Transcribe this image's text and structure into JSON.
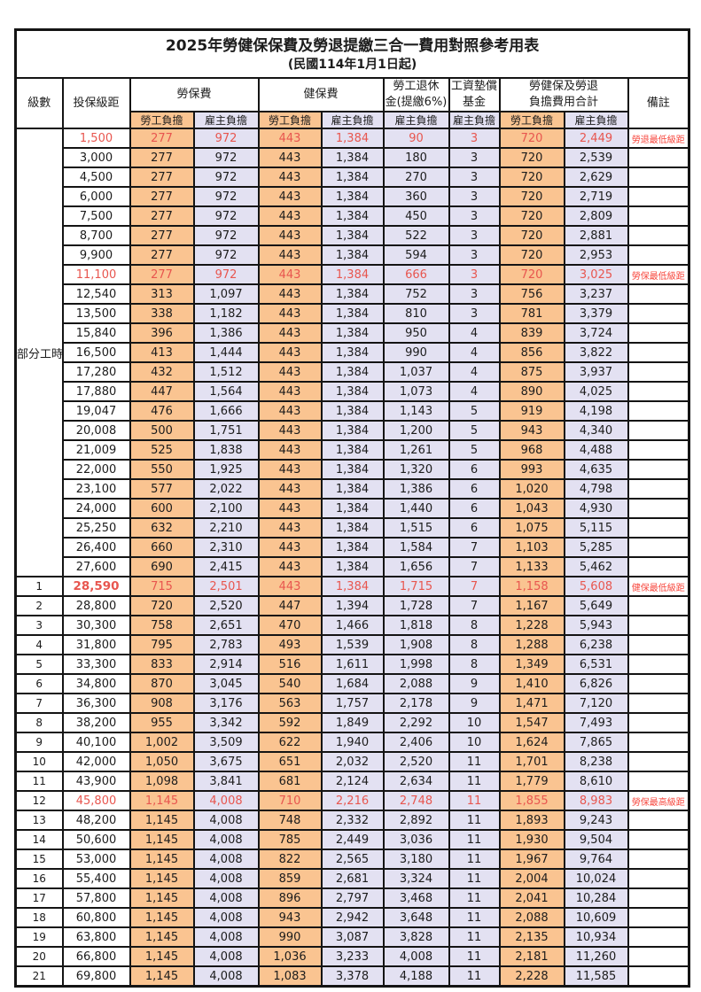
{
  "title": "2025年勞健保保費及勞退提繳三合一費用對照參考用表",
  "subtitle": "(民國114年1月1日起)",
  "header": {
    "level": "級數",
    "salary": "投保級距",
    "labor": "勞保費",
    "health": "健保費",
    "pension_line1": "勞工退休",
    "pension_line2": "金(提繳6%)",
    "fund_line1": "工資墊償",
    "fund_line2": "基金",
    "total_line1": "勞健保及勞退",
    "total_line2": "負擔費用合計",
    "remark": "備註",
    "employee": "勞工負擔",
    "employer": "雇主負擔"
  },
  "colors": {
    "employee_bg": "#fac491",
    "employer_bg": "#e3e1f2",
    "number_red": "#e8564f",
    "remark_red": "#f7463c",
    "border": "#141414"
  },
  "table": {
    "group_label": "部分工時",
    "group_rowspan": 23,
    "rows": [
      {
        "level": "",
        "cells": [
          "1,500",
          "277",
          "972",
          "443",
          "1,384",
          "90",
          "3",
          "720",
          "2,449"
        ],
        "note": "勞退最低級距",
        "red": true
      },
      {
        "level": "",
        "cells": [
          "3,000",
          "277",
          "972",
          "443",
          "1,384",
          "180",
          "3",
          "720",
          "2,539"
        ],
        "note": "",
        "red": false
      },
      {
        "level": "",
        "cells": [
          "4,500",
          "277",
          "972",
          "443",
          "1,384",
          "270",
          "3",
          "720",
          "2,629"
        ],
        "note": "",
        "red": false
      },
      {
        "level": "",
        "cells": [
          "6,000",
          "277",
          "972",
          "443",
          "1,384",
          "360",
          "3",
          "720",
          "2,719"
        ],
        "note": "",
        "red": false
      },
      {
        "level": "",
        "cells": [
          "7,500",
          "277",
          "972",
          "443",
          "1,384",
          "450",
          "3",
          "720",
          "2,809"
        ],
        "note": "",
        "red": false
      },
      {
        "level": "",
        "cells": [
          "8,700",
          "277",
          "972",
          "443",
          "1,384",
          "522",
          "3",
          "720",
          "2,881"
        ],
        "note": "",
        "red": false
      },
      {
        "level": "",
        "cells": [
          "9,900",
          "277",
          "972",
          "443",
          "1,384",
          "594",
          "3",
          "720",
          "2,953"
        ],
        "note": "",
        "red": false
      },
      {
        "level": "",
        "cells": [
          "11,100",
          "277",
          "972",
          "443",
          "1,384",
          "666",
          "3",
          "720",
          "3,025"
        ],
        "note": "勞保最低級距",
        "red": true
      },
      {
        "level": "",
        "cells": [
          "12,540",
          "313",
          "1,097",
          "443",
          "1,384",
          "752",
          "3",
          "756",
          "3,237"
        ],
        "note": "",
        "red": false
      },
      {
        "level": "",
        "cells": [
          "13,500",
          "338",
          "1,182",
          "443",
          "1,384",
          "810",
          "3",
          "781",
          "3,379"
        ],
        "note": "",
        "red": false
      },
      {
        "level": "",
        "cells": [
          "15,840",
          "396",
          "1,386",
          "443",
          "1,384",
          "950",
          "4",
          "839",
          "3,724"
        ],
        "note": "",
        "red": false
      },
      {
        "level": "",
        "cells": [
          "16,500",
          "413",
          "1,444",
          "443",
          "1,384",
          "990",
          "4",
          "856",
          "3,822"
        ],
        "note": "",
        "red": false
      },
      {
        "level": "",
        "cells": [
          "17,280",
          "432",
          "1,512",
          "443",
          "1,384",
          "1,037",
          "4",
          "875",
          "3,937"
        ],
        "note": "",
        "red": false
      },
      {
        "level": "",
        "cells": [
          "17,880",
          "447",
          "1,564",
          "443",
          "1,384",
          "1,073",
          "4",
          "890",
          "4,025"
        ],
        "note": "",
        "red": false
      },
      {
        "level": "",
        "cells": [
          "19,047",
          "476",
          "1,666",
          "443",
          "1,384",
          "1,143",
          "5",
          "919",
          "4,198"
        ],
        "note": "",
        "red": false
      },
      {
        "level": "",
        "cells": [
          "20,008",
          "500",
          "1,751",
          "443",
          "1,384",
          "1,200",
          "5",
          "943",
          "4,340"
        ],
        "note": "",
        "red": false
      },
      {
        "level": "",
        "cells": [
          "21,009",
          "525",
          "1,838",
          "443",
          "1,384",
          "1,261",
          "5",
          "968",
          "4,488"
        ],
        "note": "",
        "red": false
      },
      {
        "level": "",
        "cells": [
          "22,000",
          "550",
          "1,925",
          "443",
          "1,384",
          "1,320",
          "6",
          "993",
          "4,635"
        ],
        "note": "",
        "red": false
      },
      {
        "level": "",
        "cells": [
          "23,100",
          "577",
          "2,022",
          "443",
          "1,384",
          "1,386",
          "6",
          "1,020",
          "4,798"
        ],
        "note": "",
        "red": false
      },
      {
        "level": "",
        "cells": [
          "24,000",
          "600",
          "2,100",
          "443",
          "1,384",
          "1,440",
          "6",
          "1,043",
          "4,930"
        ],
        "note": "",
        "red": false
      },
      {
        "level": "",
        "cells": [
          "25,250",
          "632",
          "2,210",
          "443",
          "1,384",
          "1,515",
          "6",
          "1,075",
          "5,115"
        ],
        "note": "",
        "red": false
      },
      {
        "level": "",
        "cells": [
          "26,400",
          "660",
          "2,310",
          "443",
          "1,384",
          "1,584",
          "7",
          "1,103",
          "5,285"
        ],
        "note": "",
        "red": false
      },
      {
        "level": "",
        "cells": [
          "27,600",
          "690",
          "2,415",
          "443",
          "1,384",
          "1,656",
          "7",
          "1,133",
          "5,462"
        ],
        "note": "",
        "red": false
      },
      {
        "level": "1",
        "cells": [
          "28,590",
          "715",
          "2,501",
          "443",
          "1,384",
          "1,715",
          "7",
          "1,158",
          "5,608"
        ],
        "note": "健保最低級距",
        "red": true,
        "salary_bold": true
      },
      {
        "level": "2",
        "cells": [
          "28,800",
          "720",
          "2,520",
          "447",
          "1,394",
          "1,728",
          "7",
          "1,167",
          "5,649"
        ],
        "note": "",
        "red": false
      },
      {
        "level": "3",
        "cells": [
          "30,300",
          "758",
          "2,651",
          "470",
          "1,466",
          "1,818",
          "8",
          "1,228",
          "5,943"
        ],
        "note": "",
        "red": false
      },
      {
        "level": "4",
        "cells": [
          "31,800",
          "795",
          "2,783",
          "493",
          "1,539",
          "1,908",
          "8",
          "1,288",
          "6,238"
        ],
        "note": "",
        "red": false
      },
      {
        "level": "5",
        "cells": [
          "33,300",
          "833",
          "2,914",
          "516",
          "1,611",
          "1,998",
          "8",
          "1,349",
          "6,531"
        ],
        "note": "",
        "red": false
      },
      {
        "level": "6",
        "cells": [
          "34,800",
          "870",
          "3,045",
          "540",
          "1,684",
          "2,088",
          "9",
          "1,410",
          "6,826"
        ],
        "note": "",
        "red": false
      },
      {
        "level": "7",
        "cells": [
          "36,300",
          "908",
          "3,176",
          "563",
          "1,757",
          "2,178",
          "9",
          "1,471",
          "7,120"
        ],
        "note": "",
        "red": false
      },
      {
        "level": "8",
        "cells": [
          "38,200",
          "955",
          "3,342",
          "592",
          "1,849",
          "2,292",
          "10",
          "1,547",
          "7,493"
        ],
        "note": "",
        "red": false
      },
      {
        "level": "9",
        "cells": [
          "40,100",
          "1,002",
          "3,509",
          "622",
          "1,940",
          "2,406",
          "10",
          "1,624",
          "7,865"
        ],
        "note": "",
        "red": false
      },
      {
        "level": "10",
        "cells": [
          "42,000",
          "1,050",
          "3,675",
          "651",
          "2,032",
          "2,520",
          "11",
          "1,701",
          "8,238"
        ],
        "note": "",
        "red": false
      },
      {
        "level": "11",
        "cells": [
          "43,900",
          "1,098",
          "3,841",
          "681",
          "2,124",
          "2,634",
          "11",
          "1,779",
          "8,610"
        ],
        "note": "",
        "red": false
      },
      {
        "level": "12",
        "cells": [
          "45,800",
          "1,145",
          "4,008",
          "710",
          "2,216",
          "2,748",
          "11",
          "1,855",
          "8,983"
        ],
        "note": "勞保最高級距",
        "red": true
      },
      {
        "level": "13",
        "cells": [
          "48,200",
          "1,145",
          "4,008",
          "748",
          "2,332",
          "2,892",
          "11",
          "1,893",
          "9,243"
        ],
        "note": "",
        "red": false
      },
      {
        "level": "14",
        "cells": [
          "50,600",
          "1,145",
          "4,008",
          "785",
          "2,449",
          "3,036",
          "11",
          "1,930",
          "9,504"
        ],
        "note": "",
        "red": false
      },
      {
        "level": "15",
        "cells": [
          "53,000",
          "1,145",
          "4,008",
          "822",
          "2,565",
          "3,180",
          "11",
          "1,967",
          "9,764"
        ],
        "note": "",
        "red": false
      },
      {
        "level": "16",
        "cells": [
          "55,400",
          "1,145",
          "4,008",
          "859",
          "2,681",
          "3,324",
          "11",
          "2,004",
          "10,024"
        ],
        "note": "",
        "red": false
      },
      {
        "level": "17",
        "cells": [
          "57,800",
          "1,145",
          "4,008",
          "896",
          "2,797",
          "3,468",
          "11",
          "2,041",
          "10,284"
        ],
        "note": "",
        "red": false
      },
      {
        "level": "18",
        "cells": [
          "60,800",
          "1,145",
          "4,008",
          "943",
          "2,942",
          "3,648",
          "11",
          "2,088",
          "10,609"
        ],
        "note": "",
        "red": false
      },
      {
        "level": "19",
        "cells": [
          "63,800",
          "1,145",
          "4,008",
          "990",
          "3,087",
          "3,828",
          "11",
          "2,135",
          "10,934"
        ],
        "note": "",
        "red": false
      },
      {
        "level": "20",
        "cells": [
          "66,800",
          "1,145",
          "4,008",
          "1,036",
          "3,233",
          "4,008",
          "11",
          "2,181",
          "11,260"
        ],
        "note": "",
        "red": false
      },
      {
        "level": "21",
        "cells": [
          "69,800",
          "1,145",
          "4,008",
          "1,083",
          "3,378",
          "4,188",
          "11",
          "2,228",
          "11,585"
        ],
        "note": "",
        "red": false
      }
    ]
  }
}
